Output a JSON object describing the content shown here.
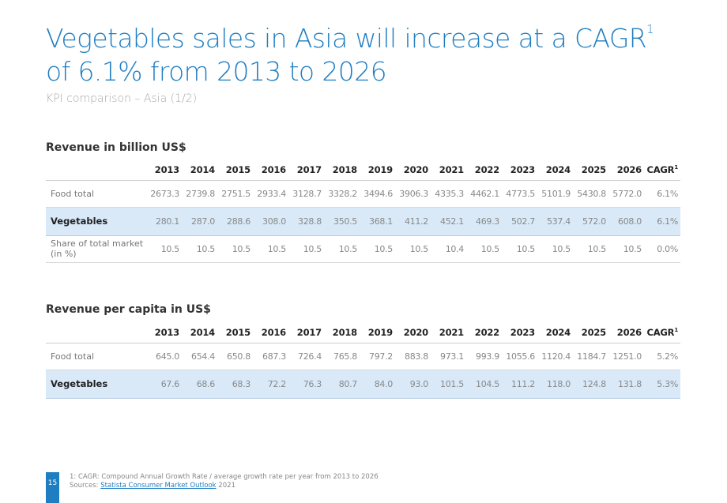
{
  "title_main": "Vegetables sales in Asia will increase at a CAGR",
  "title_sup": "1",
  "title_rest": " of 6.1% from 2013 to 2026",
  "subtitle": "KPI comparison – Asia (1/2)",
  "sections": [
    {
      "title": "Revenue in billion US$",
      "header_years": [
        "2013",
        "2014",
        "2015",
        "2016",
        "2017",
        "2018",
        "2019",
        "2020",
        "2021",
        "2022",
        "2023",
        "2024",
        "2025",
        "2026"
      ],
      "header_cagr": "CAGR",
      "header_cagr_sup": "1",
      "rows": [
        {
          "label": "Food total",
          "highlight": false,
          "values": [
            "2673.3",
            "2739.8",
            "2751.5",
            "2933.4",
            "3128.7",
            "3328.2",
            "3494.6",
            "3906.3",
            "4335.3",
            "4462.1",
            "4773.5",
            "5101.9",
            "5430.8",
            "5772.0",
            "6.1%"
          ]
        },
        {
          "label": "Vegetables",
          "highlight": true,
          "values": [
            "280.1",
            "287.0",
            "288.6",
            "308.0",
            "328.8",
            "350.5",
            "368.1",
            "411.2",
            "452.1",
            "469.3",
            "502.7",
            "537.4",
            "572.0",
            "608.0",
            "6.1%"
          ]
        },
        {
          "label": "Share of total market (in %)",
          "highlight": false,
          "values": [
            "10.5",
            "10.5",
            "10.5",
            "10.5",
            "10.5",
            "10.5",
            "10.5",
            "10.5",
            "10.4",
            "10.5",
            "10.5",
            "10.5",
            "10.5",
            "10.5",
            "0.0%"
          ]
        }
      ]
    },
    {
      "title": "Revenue per capita in US$",
      "header_years": [
        "2013",
        "2014",
        "2015",
        "2016",
        "2017",
        "2018",
        "2019",
        "2020",
        "2021",
        "2022",
        "2023",
        "2024",
        "2025",
        "2026"
      ],
      "header_cagr": "CAGR",
      "header_cagr_sup": "1",
      "rows": [
        {
          "label": "Food total",
          "highlight": false,
          "values": [
            "645.0",
            "654.4",
            "650.8",
            "687.3",
            "726.4",
            "765.8",
            "797.2",
            "883.8",
            "973.1",
            "993.9",
            "1055.6",
            "1120.4",
            "1184.7",
            "1251.0",
            "5.2%"
          ]
        },
        {
          "label": "Vegetables",
          "highlight": true,
          "values": [
            "67.6",
            "68.6",
            "68.3",
            "72.2",
            "76.3",
            "80.7",
            "84.0",
            "93.0",
            "101.5",
            "104.5",
            "111.2",
            "118.0",
            "124.8",
            "131.8",
            "5.3%"
          ]
        }
      ]
    }
  ],
  "footnote_line1": "1: CAGR: Compound Annual Growth Rate / average growth rate per year from 2013 to 2026",
  "footnote_sources_prefix": "Sources: ",
  "footnote_sources_link": "Statista Consumer Market Outlook",
  "footnote_sources_suffix": " 2021",
  "page_number": "15",
  "colors": {
    "accent": "#1f7ec2",
    "highlight_row": "#d9e9f8"
  }
}
